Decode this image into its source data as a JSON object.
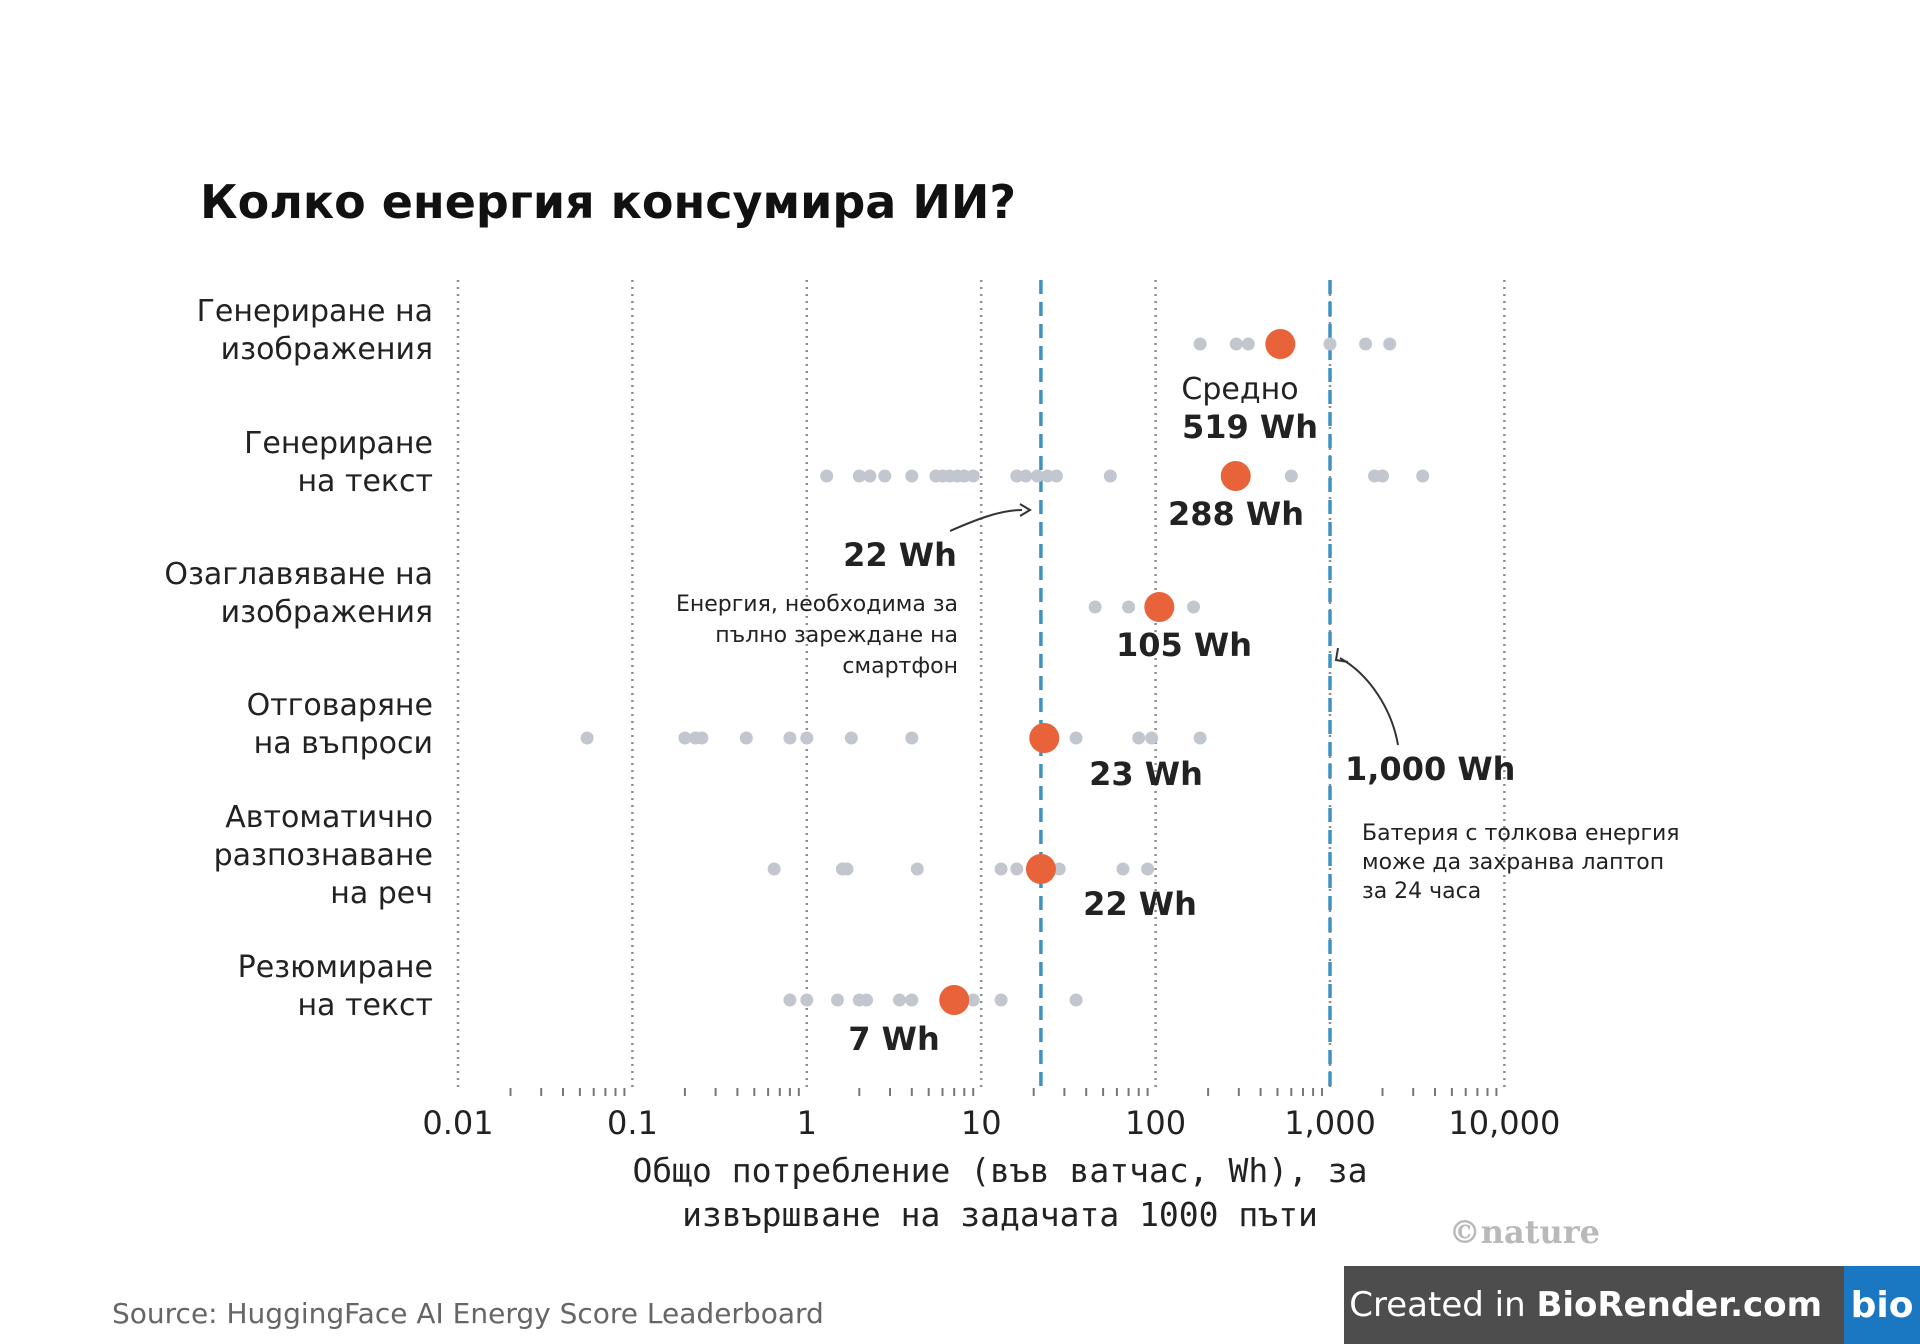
{
  "chart_data": {
    "type": "scatter",
    "title": "Колко енергия консумира ИИ?",
    "xlabel": [
      "Общо потребление (във ватчас, Wh), за",
      "извършване на задачата 1000 пъти"
    ],
    "x_scale": "log",
    "xlim": [
      0.01,
      10000
    ],
    "x_ticks": [
      {
        "value": 0.01,
        "label": "0.01"
      },
      {
        "value": 0.1,
        "label": "0.1"
      },
      {
        "value": 1,
        "label": "1"
      },
      {
        "value": 10,
        "label": "10"
      },
      {
        "value": 100,
        "label": "100"
      },
      {
        "value": 1000,
        "label": "1,000"
      },
      {
        "value": 10000,
        "label": "10,000"
      }
    ],
    "categories": [
      {
        "label": [
          "Генериране на",
          "изображения"
        ],
        "average": 519,
        "average_label": [
          "Средно",
          "519 Wh"
        ],
        "models": [
          180,
          290,
          340,
          1000,
          1600,
          2200
        ]
      },
      {
        "label": [
          "Генериране",
          "на текст"
        ],
        "average": 288,
        "average_label": [
          "288 Wh"
        ],
        "models": [
          1.3,
          2.0,
          2.3,
          2.8,
          4.0,
          5.5,
          6.0,
          6.6,
          7.3,
          8.0,
          9.0,
          16,
          18,
          21,
          24,
          27,
          55,
          600,
          1800,
          2000,
          3400
        ]
      },
      {
        "label": [
          "Озаглавяване на",
          "изображения"
        ],
        "average": 105,
        "average_label": [
          "105 Wh"
        ],
        "models": [
          45,
          70,
          165
        ]
      },
      {
        "label": [
          "Отговаряне",
          "на въпроси"
        ],
        "average": 23,
        "average_label": [
          "23 Wh"
        ],
        "models": [
          0.055,
          0.2,
          0.23,
          0.25,
          0.45,
          0.8,
          1.0,
          1.8,
          4.0,
          35,
          80,
          95,
          180
        ]
      },
      {
        "label": [
          "Автоматично",
          "разпознаване",
          "на реч"
        ],
        "average": 22,
        "average_label": [
          "22 Wh"
        ],
        "models": [
          0.65,
          1.6,
          1.7,
          4.3,
          13,
          16,
          28,
          65,
          90
        ]
      },
      {
        "label": [
          "Резюмиране",
          "на текст"
        ],
        "average": 7,
        "average_label": [
          "7 Wh"
        ],
        "models": [
          0.8,
          1.0,
          1.5,
          2.0,
          2.2,
          3.4,
          4.0,
          9.0,
          13,
          35
        ]
      }
    ],
    "reference_lines": [
      {
        "value": 22,
        "label": "22 Wh",
        "note": [
          "Енергия, необходима за",
          "пълно зареждане на",
          "смартфон"
        ]
      },
      {
        "value": 1000,
        "label": "1,000 Wh",
        "note": [
          "Батерия с толкова енергия",
          "може да захранва лаптоп",
          "за 24 часа"
        ]
      }
    ],
    "colors": {
      "average": "#e8623a",
      "model": "#c2c7cf",
      "reference": "#3e92c2",
      "grid": "#8e8e8e"
    },
    "grid": true,
    "legend": "none"
  },
  "source": "Source: HuggingFace AI Energy Score Leaderboard",
  "logo_text": "©nature",
  "credit": {
    "prefix": "Created in ",
    "brand": "BioRender.com",
    "logo": "bio"
  }
}
